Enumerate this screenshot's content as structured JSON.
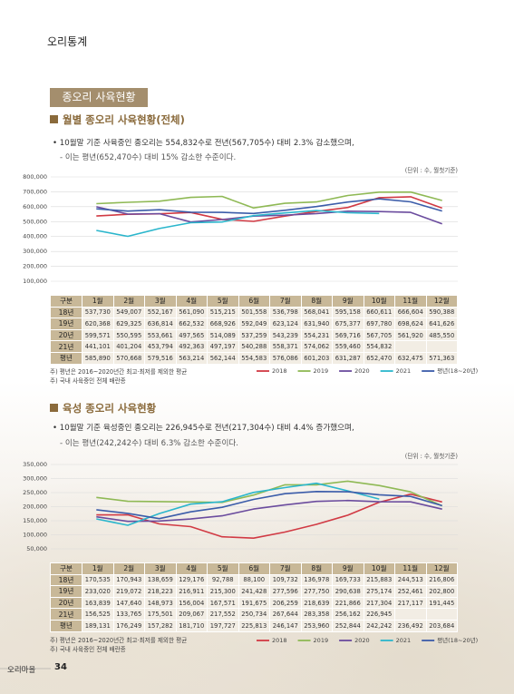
{
  "header": {
    "title": "오리통계"
  },
  "section_title": "종오리 사육현황",
  "chart_data": [
    {
      "type": "line",
      "title": "월별 종오리 사육현황(전체)",
      "bullet": "• 10월말 기준 사육중인 종오리는 554,832수로 전년(567,705수) 대비 2.3% 감소했으며,",
      "sub": "- 이는 평년(652,470수) 대비 15% 감소한 수준이다.",
      "unit": "(단위 : 수, 월첫기준)",
      "table_header": "구분",
      "categories": [
        "1월",
        "2월",
        "3월",
        "4월",
        "5월",
        "6월",
        "7월",
        "8월",
        "9월",
        "10월",
        "11월",
        "12월"
      ],
      "ylim": [
        100000,
        800000
      ],
      "yticks": [
        {
          "value": 100000,
          "label": "100,000"
        },
        {
          "value": 200000,
          "label": "200,000"
        },
        {
          "value": 300000,
          "label": "300,000"
        },
        {
          "value": 400000,
          "label": "400,000"
        },
        {
          "value": 500000,
          "label": "500,000"
        },
        {
          "value": 600000,
          "label": "600,000"
        },
        {
          "value": 700000,
          "label": "700,000"
        },
        {
          "value": 800000,
          "label": "800,000"
        }
      ],
      "grid": true,
      "series": [
        {
          "name": "2018",
          "row_label": "18년",
          "color": "#d13a44",
          "values": [
            537730,
            549007,
            552167,
            561090,
            515215,
            501558,
            536798,
            568041,
            595158,
            660611,
            666604,
            590388
          ],
          "value_labels": [
            "537,730",
            "549,007",
            "552,167",
            "561,090",
            "515,215",
            "501,558",
            "536,798",
            "568,041",
            "595,158",
            "660,611",
            "666,604",
            "590,388"
          ]
        },
        {
          "name": "2019",
          "row_label": "19년",
          "color": "#8fb955",
          "values": [
            620368,
            629325,
            636814,
            662532,
            668926,
            592049,
            623124,
            631940,
            675377,
            697780,
            698624,
            641626
          ],
          "value_labels": [
            "620,368",
            "629,325",
            "636,814",
            "662,532",
            "668,926",
            "592,049",
            "623,124",
            "631,940",
            "675,377",
            "697,780",
            "698,624",
            "641,626"
          ]
        },
        {
          "name": "2020",
          "row_label": "20년",
          "color": "#6b4c9e",
          "values": [
            599571,
            550595,
            553661,
            497565,
            514089,
            537259,
            543239,
            554231,
            569716,
            567705,
            561920,
            485550
          ],
          "value_labels": [
            "599,571",
            "550,595",
            "553,661",
            "497,565",
            "514,089",
            "537,259",
            "543,239",
            "554,231",
            "569,716",
            "567,705",
            "561,920",
            "485,550"
          ]
        },
        {
          "name": "2021",
          "row_label": "21년",
          "color": "#2bb6cc",
          "values": [
            441101,
            401204,
            453794,
            492363,
            497197,
            540288,
            558371,
            574062,
            559460,
            554832,
            null,
            null
          ],
          "value_labels": [
            "441,101",
            "401,204",
            "453,794",
            "492,363",
            "497,197",
            "540,288",
            "558,371",
            "574,062",
            "559,460",
            "554,832",
            null,
            null
          ]
        },
        {
          "name": "평년(18~20년)",
          "row_label": "평년",
          "color": "#3b5ca9",
          "values": [
            585890,
            570668,
            579516,
            563214,
            562144,
            554583,
            576086,
            601203,
            631287,
            652470,
            632475,
            571363
          ],
          "value_labels": [
            "585,890",
            "570,668",
            "579,516",
            "563,214",
            "562,144",
            "554,583",
            "576,086",
            "601,203",
            "631,287",
            "652,470",
            "632,475",
            "571,363"
          ]
        }
      ],
      "notes": [
        "주) 평년은 2016~2020년간 최고·최저를 제외한 평균",
        "주) 국내 사육중인 전체 배란종"
      ]
    },
    {
      "type": "line",
      "title": "육성 종오리 사육현황",
      "bullet": "• 10월말 기준 육성중인 종오리는 226,945수로 전년(217,304수) 대비 4.4% 증가했으며,",
      "sub": "- 이는 평년(242,242수) 대비 6.3% 감소한 수준이다.",
      "unit": "(단위 : 수, 월첫기준)",
      "table_header": "구분",
      "categories": [
        "1월",
        "2월",
        "3월",
        "4월",
        "5월",
        "6월",
        "7월",
        "8월",
        "9월",
        "10월",
        "11월",
        "12월"
      ],
      "ylim": [
        50000,
        350000
      ],
      "yticks": [
        {
          "value": 50000,
          "label": "50,000"
        },
        {
          "value": 100000,
          "label": "100,000"
        },
        {
          "value": 150000,
          "label": "150,000"
        },
        {
          "value": 200000,
          "label": "200,000"
        },
        {
          "value": 250000,
          "label": "250,000"
        },
        {
          "value": 300000,
          "label": "300,000"
        },
        {
          "value": 350000,
          "label": "350,000"
        }
      ],
      "grid": true,
      "series": [
        {
          "name": "2018",
          "row_label": "18년",
          "color": "#d13a44",
          "values": [
            170535,
            170943,
            138659,
            129176,
            92788,
            88100,
            109732,
            136978,
            169733,
            215883,
            244513,
            216806
          ],
          "value_labels": [
            "170,535",
            "170,943",
            "138,659",
            "129,176",
            "92,788",
            "88,100",
            "109,732",
            "136,978",
            "169,733",
            "215,883",
            "244,513",
            "216,806"
          ]
        },
        {
          "name": "2019",
          "row_label": "19년",
          "color": "#8fb955",
          "values": [
            233020,
            219072,
            218223,
            216911,
            215300,
            241428,
            277596,
            277750,
            290638,
            275174,
            252461,
            202800
          ],
          "value_labels": [
            "233,020",
            "219,072",
            "218,223",
            "216,911",
            "215,300",
            "241,428",
            "277,596",
            "277,750",
            "290,638",
            "275,174",
            "252,461",
            "202,800"
          ]
        },
        {
          "name": "2020",
          "row_label": "20년",
          "color": "#6b4c9e",
          "values": [
            163839,
            147640,
            148973,
            156004,
            167571,
            191675,
            206259,
            218639,
            221866,
            217304,
            217117,
            191445
          ],
          "value_labels": [
            "163,839",
            "147,640",
            "148,973",
            "156,004",
            "167,571",
            "191,675",
            "206,259",
            "218,639",
            "221,866",
            "217,304",
            "217,117",
            "191,445"
          ]
        },
        {
          "name": "2021",
          "row_label": "21년",
          "color": "#2bb6cc",
          "values": [
            156525,
            133765,
            175501,
            209067,
            217552,
            250734,
            267644,
            283358,
            256162,
            226945,
            null,
            null
          ],
          "value_labels": [
            "156,525",
            "133,765",
            "175,501",
            "209,067",
            "217,552",
            "250,734",
            "267,644",
            "283,358",
            "256,162",
            "226,945",
            null,
            null
          ]
        },
        {
          "name": "평년(18~20년)",
          "row_label": "평년",
          "color": "#3b5ca9",
          "values": [
            189131,
            176249,
            157282,
            181710,
            197727,
            225813,
            246147,
            253960,
            252844,
            242242,
            236492,
            203684
          ],
          "value_labels": [
            "189,131",
            "176,249",
            "157,282",
            "181,710",
            "197,727",
            "225,813",
            "246,147",
            "253,960",
            "252,844",
            "242,242",
            "236,492",
            "203,684"
          ]
        }
      ],
      "notes": [
        "주) 평년은 2016~2020년간 최고·최저를 제외한 평균",
        "주) 국내 사육중인 전체 배란종"
      ]
    }
  ],
  "footer": {
    "publication": "오리마을",
    "page": "34"
  }
}
